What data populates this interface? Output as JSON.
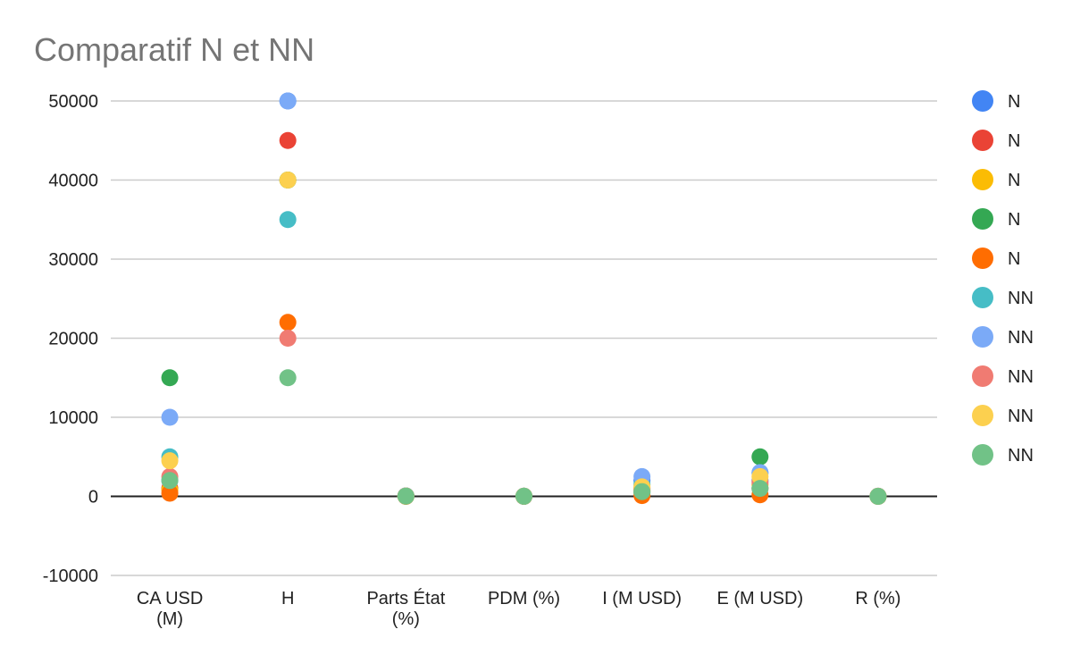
{
  "chart_data": {
    "type": "scatter",
    "title": "Comparatif N et NN",
    "xlabel": "",
    "ylabel": "",
    "categories": [
      [
        "CA USD",
        "(M)"
      ],
      [
        "H"
      ],
      [
        "Parts État",
        "(%)"
      ],
      [
        "PDM (%)"
      ],
      [
        "I (M USD)"
      ],
      [
        "E (M USD)"
      ],
      [
        "R (%)"
      ]
    ],
    "ylim": [
      -10000,
      50000
    ],
    "yticks": [
      -10000,
      0,
      10000,
      20000,
      30000,
      40000,
      50000
    ],
    "ytick_labels": [
      "-10000",
      "0",
      "10000",
      "20000",
      "30000",
      "40000",
      "50000"
    ],
    "grid": true,
    "legend_position": "right",
    "series": [
      {
        "name": "N",
        "color": "#4285f4",
        "values": [
          2000,
          50000,
          50,
          10,
          2000,
          2000,
          5
        ]
      },
      {
        "name": "N",
        "color": "#ea4335",
        "values": [
          1000,
          45000,
          40,
          8,
          1000,
          1000,
          8
        ]
      },
      {
        "name": "N",
        "color": "#fbbc04",
        "values": [
          800,
          40000,
          30,
          12,
          800,
          1500,
          4
        ]
      },
      {
        "name": "N",
        "color": "#34a853",
        "values": [
          15000,
          40000,
          20,
          15,
          500,
          5000,
          6
        ]
      },
      {
        "name": "N",
        "color": "#ff6d01",
        "values": [
          400,
          22000,
          10,
          5,
          100,
          200,
          3
        ]
      },
      {
        "name": "NN",
        "color": "#46bdc6",
        "values": [
          5000,
          35000,
          60,
          20,
          1500,
          3000,
          10
        ]
      },
      {
        "name": "NN",
        "color": "#7baaf7",
        "values": [
          10000,
          50000,
          55,
          18,
          2500,
          3000,
          7
        ]
      },
      {
        "name": "NN",
        "color": "#f07b72",
        "values": [
          2500,
          20000,
          45,
          14,
          700,
          1800,
          9
        ]
      },
      {
        "name": "NN",
        "color": "#fcd04f",
        "values": [
          4500,
          40000,
          35,
          11,
          1200,
          2500,
          6
        ]
      },
      {
        "name": "NN",
        "color": "#71c287",
        "values": [
          2000,
          15000,
          25,
          9,
          600,
          1000,
          5
        ]
      }
    ]
  }
}
